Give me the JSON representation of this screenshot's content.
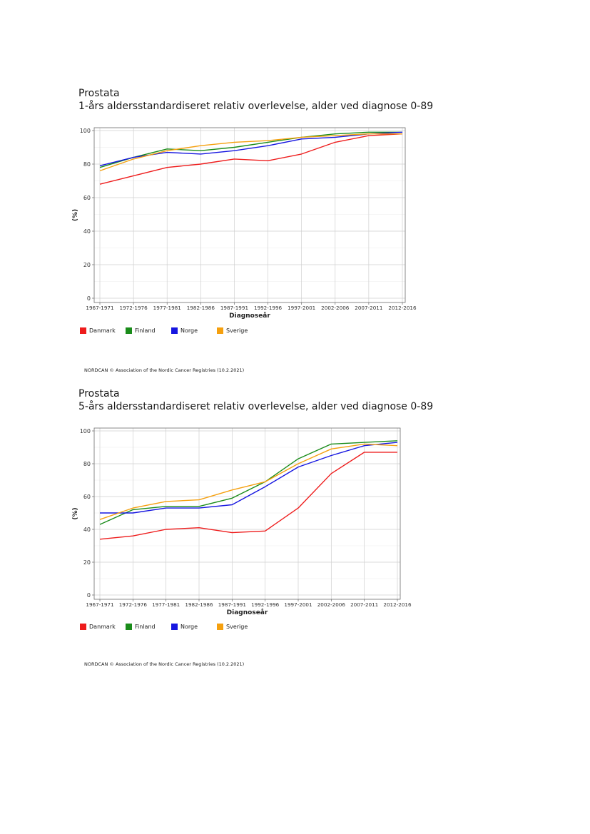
{
  "chart_data": [
    {
      "type": "line",
      "title": "Prostata",
      "subtitle": "1-års aldersstandardiseret relativ overlevelse, alder ved diagnose 0-89",
      "xlabel": "Diagnoseår",
      "ylabel": "(%)",
      "categories": [
        "1967-1971",
        "1972-1976",
        "1977-1981",
        "1982-1986",
        "1987-1991",
        "1992-1996",
        "1997-2001",
        "2002-2006",
        "2007-2011",
        "2012-2016"
      ],
      "ylim": [
        0,
        100
      ],
      "yticks": [
        0,
        20,
        40,
        60,
        80,
        100
      ],
      "grid": true,
      "legend_position": "bottom-left",
      "series": [
        {
          "name": "Danmark",
          "color": "#ee1c1c",
          "values": [
            68,
            73,
            78,
            80,
            83,
            82,
            86,
            93,
            97,
            98
          ]
        },
        {
          "name": "Finland",
          "color": "#1a8c1a",
          "values": [
            78,
            84,
            89,
            88,
            90,
            93,
            96,
            98,
            99,
            99
          ]
        },
        {
          "name": "Norge",
          "color": "#1616e0",
          "values": [
            79,
            84,
            87,
            86,
            88,
            91,
            95,
            96,
            98,
            99
          ]
        },
        {
          "name": "Sverige",
          "color": "#f5a00f",
          "values": [
            76,
            83,
            88,
            91,
            93,
            94,
            96,
            97,
            98,
            98
          ]
        }
      ],
      "footer": "NORDCAN © Association of the Nordic Cancer Registries (10.2.2021)"
    },
    {
      "type": "line",
      "title": "Prostata",
      "subtitle": "5-års aldersstandardiseret relativ overlevelse, alder ved diagnose 0-89",
      "xlabel": "Diagnoseår",
      "ylabel": "(%)",
      "categories": [
        "1967-1971",
        "1972-1976",
        "1977-1981",
        "1982-1986",
        "1987-1991",
        "1992-1996",
        "1997-2001",
        "2002-2006",
        "2007-2011",
        "2012-2016"
      ],
      "ylim": [
        0,
        100
      ],
      "yticks": [
        0,
        20,
        40,
        60,
        80,
        100
      ],
      "grid": true,
      "legend_position": "bottom-left",
      "series": [
        {
          "name": "Danmark",
          "color": "#ee1c1c",
          "values": [
            34,
            36,
            40,
            41,
            38,
            39,
            53,
            74,
            87,
            87
          ]
        },
        {
          "name": "Finland",
          "color": "#1a8c1a",
          "values": [
            43,
            52,
            54,
            54,
            59,
            69,
            83,
            92,
            93,
            94
          ]
        },
        {
          "name": "Norge",
          "color": "#1616e0",
          "values": [
            50,
            50,
            53,
            53,
            55,
            66,
            78,
            85,
            91,
            93
          ]
        },
        {
          "name": "Sverige",
          "color": "#f5a00f",
          "values": [
            46,
            53,
            57,
            58,
            64,
            69,
            80,
            89,
            92,
            91
          ]
        }
      ],
      "footer": "NORDCAN © Association of the Nordic Cancer Registries (10.2.2021)"
    }
  ]
}
